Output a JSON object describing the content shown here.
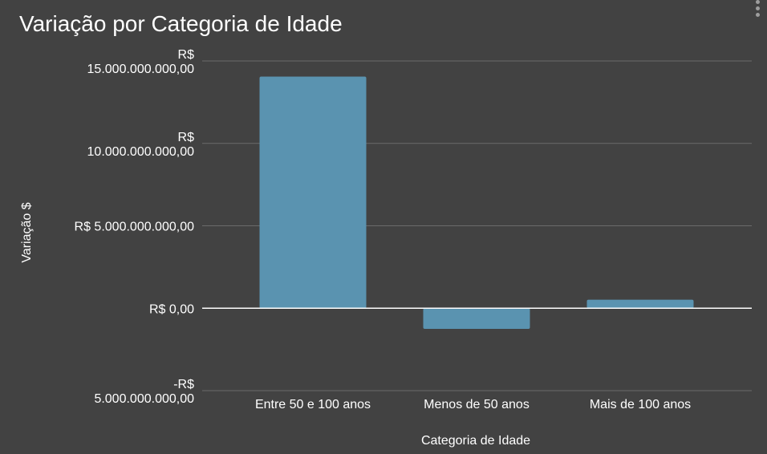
{
  "title": "Variação por Categoria de Idade",
  "menu": {
    "icon": "more-vert-icon"
  },
  "colors": {
    "background": "#424242",
    "bar": "#5a93b0",
    "grid": "#6b6b6b",
    "zero_line": "#ffffff",
    "text": "#ffffff"
  },
  "chart_data": {
    "type": "bar",
    "title": "Variação por Categoria de Idade",
    "xlabel": "Categoria de Idade",
    "ylabel": "Variação $",
    "categories": [
      "Entre 50 e 100 anos",
      "Menos de 50 anos",
      "Mais de 100 anos"
    ],
    "values": [
      14050000000,
      -1250000000,
      520000000
    ],
    "ylim": [
      -5000000000,
      15000000000
    ],
    "yticks": [
      {
        "value": 15000000000,
        "lines": [
          "R$",
          "15.000.000.000,00"
        ]
      },
      {
        "value": 10000000000,
        "lines": [
          "R$",
          "10.000.000.000,00"
        ]
      },
      {
        "value": 5000000000,
        "lines": [
          "R$ 5.000.000.000,00"
        ]
      },
      {
        "value": 0,
        "lines": [
          "R$ 0,00"
        ]
      },
      {
        "value": -5000000000,
        "lines": [
          "-R$",
          "5.000.000.000,00"
        ]
      }
    ],
    "grid": true,
    "legend": "none"
  }
}
